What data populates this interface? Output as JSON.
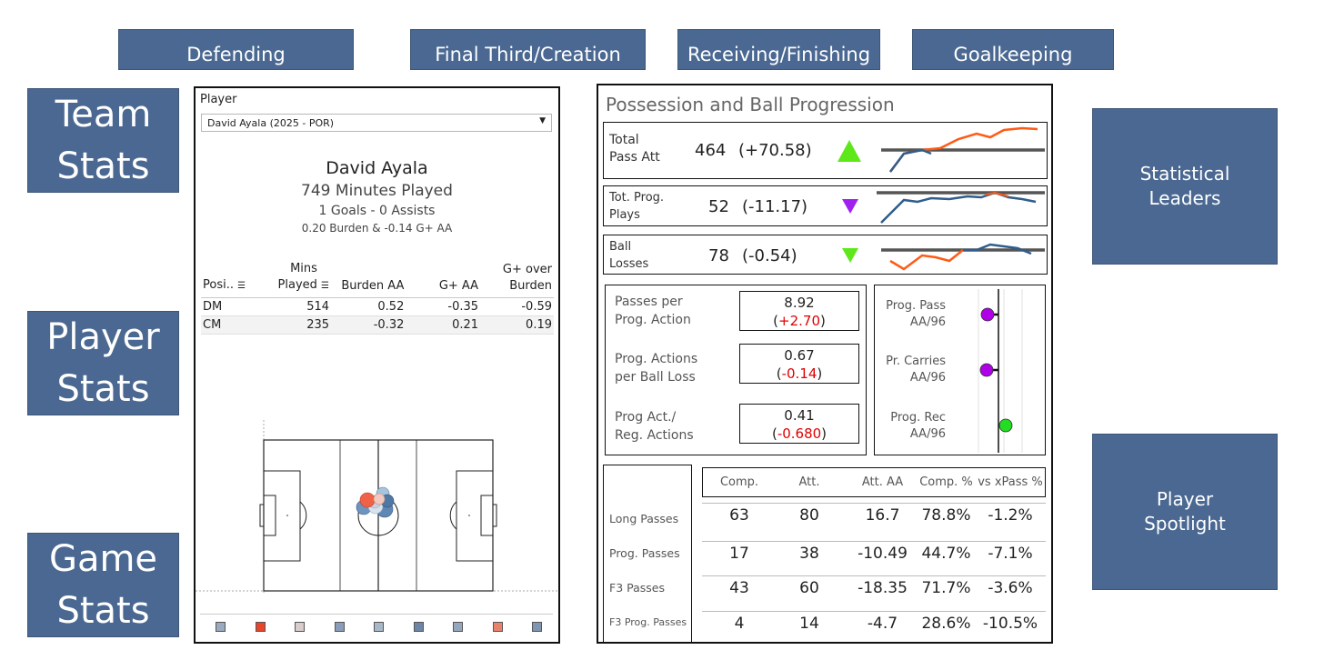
{
  "nav": {
    "top": [
      "Defending",
      "Final Third/Creation",
      "Receiving/Finishing",
      "Goalkeeping"
    ],
    "left": [
      "Team\nStats",
      "Player\nStats",
      "Game\nStats"
    ],
    "right": [
      "Statistical\nLeaders",
      "Player\nSpotlight"
    ]
  },
  "player": {
    "label": "Player",
    "selected": "David Ayala (2025 - POR)",
    "name": "David Ayala",
    "minutes": "749 Minutes Played",
    "goals_assists": "1 Goals - 0 Assists",
    "burden": "0.20 Burden &  -0.14 G+ AA",
    "table": {
      "headers": [
        "Posi..",
        "Mins Played",
        "Burden AA",
        "G+ AA",
        "G+ over Burden"
      ],
      "rows": [
        [
          "DM",
          "514",
          "0.52",
          "-0.35",
          "-0.59"
        ],
        [
          "CM",
          "235",
          "-0.32",
          "0.21",
          "0.19"
        ]
      ]
    },
    "swatch_colors": [
      "#9aaabf",
      "#e8452b",
      "#d9cccc",
      "#8a9db8",
      "#a9b8c9",
      "#6f85a5",
      "#95a6bd",
      "#e8826c",
      "#7f95b2"
    ]
  },
  "possession": {
    "title": "Possession and Ball Progression",
    "rows": [
      {
        "label": "Total\nPass Att",
        "value": "464",
        "delta": "(+70.58)",
        "trend": "up",
        "color": "#5ee81a"
      },
      {
        "label": "Tot. Prog.\nPlays",
        "value": "52",
        "delta": "(-11.17)",
        "trend": "down",
        "color": "#a020f0"
      },
      {
        "label": "Ball\nLosses",
        "value": "78",
        "delta": "(-0.54)",
        "trend": "down",
        "color": "#5ee81a"
      }
    ],
    "metrics": [
      {
        "label": "Passes per\nProg. Action",
        "value": "8.92",
        "delta": "+2.70"
      },
      {
        "label": "Prog. Actions\nper Ball Loss",
        "value": "0.67",
        "delta": "-0.14"
      },
      {
        "label": "Prog Act./\nReg. Actions",
        "value": "0.41",
        "delta": "-0.680"
      }
    ],
    "aa96": [
      {
        "label": "Prog. Pass\nAA/96",
        "color": "#b000e8"
      },
      {
        "label": "Pr. Carries\nAA/96",
        "color": "#b000e8"
      },
      {
        "label": "Prog. Rec\nAA/96",
        "color": "#22dd22"
      }
    ],
    "pass_table": {
      "headers": [
        "Comp.",
        "Att.",
        "Att. AA",
        "Comp. %",
        "vs xPass %"
      ],
      "rows": [
        {
          "label": "Long Passes",
          "values": [
            "63",
            "80",
            "16.7",
            "78.8%",
            "-1.2%"
          ]
        },
        {
          "label": "Prog. Passes",
          "values": [
            "17",
            "38",
            "-10.49",
            "44.7%",
            "-7.1%"
          ]
        },
        {
          "label": "F3 Passes",
          "values": [
            "43",
            "60",
            "-18.35",
            "71.7%",
            "-3.6%"
          ]
        },
        {
          "label": "F3 Prog. Passes",
          "values": [
            "4",
            "14",
            "-4.7",
            "28.6%",
            "-10.5%"
          ]
        }
      ]
    }
  }
}
